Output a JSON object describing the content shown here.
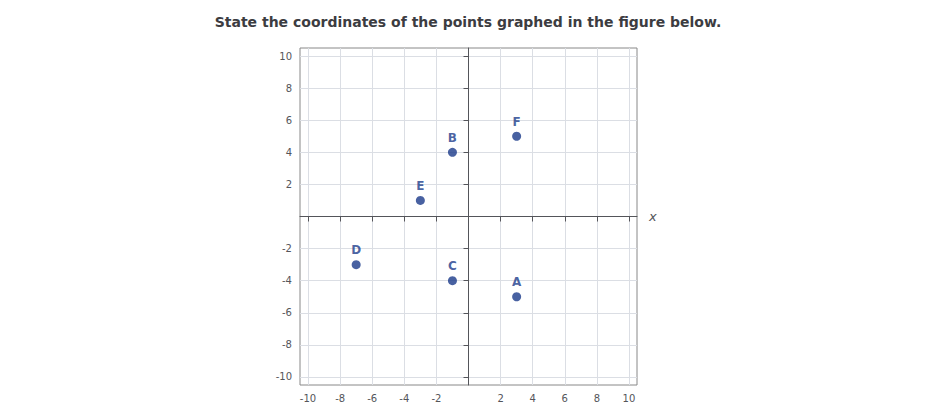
{
  "chart_data": {
    "type": "scatter",
    "title": "State the coordinates of the points graphed in the figure below.",
    "xlabel": "x",
    "x": [
      3,
      -1,
      -1,
      -7,
      -3,
      3
    ],
    "values": [
      -5,
      4,
      -4,
      -3,
      1,
      5
    ],
    "labels": [
      "A",
      "B",
      "C",
      "D",
      "E",
      "F"
    ],
    "color": "#1a3a8a",
    "xlim": [
      -10.5,
      10.5
    ],
    "ylim": [
      -10.5,
      10.5
    ],
    "xticks": [
      -10,
      -8,
      -6,
      -4,
      -2,
      2,
      4,
      6,
      8,
      10
    ],
    "yticks": [
      -10,
      -8,
      -6,
      -4,
      -2,
      2,
      4,
      6,
      8,
      10
    ],
    "grid": true
  }
}
